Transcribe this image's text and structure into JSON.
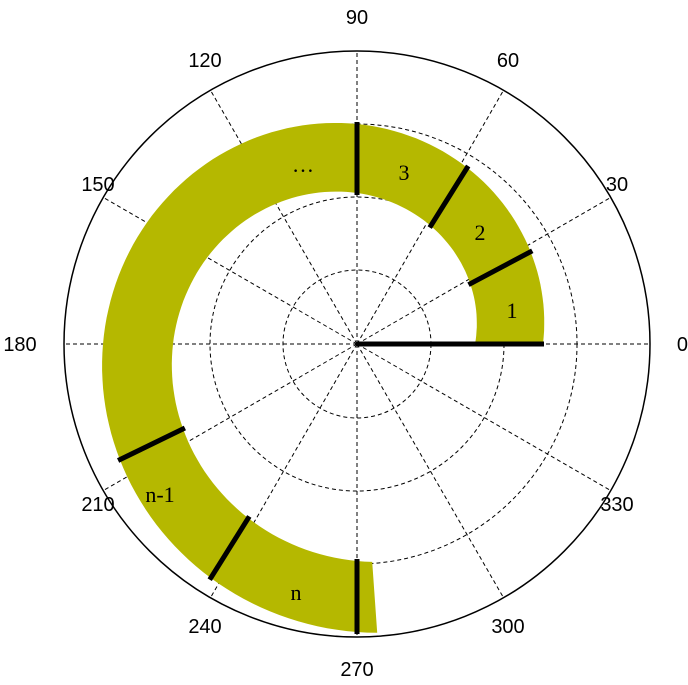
{
  "angle_labels": [
    "0",
    "30",
    "60",
    "90",
    "120",
    "150",
    "180",
    "210",
    "240",
    "270",
    "300",
    "330"
  ],
  "segment_labels": {
    "seg1": "1",
    "seg2": "2",
    "seg3": "3",
    "ellipsis": "…",
    "n_minus_1": "n-1",
    "n": "n"
  },
  "colors": {
    "spiral_fill": "#b5b800",
    "lines": "#000000",
    "background": "#ffffff"
  }
}
